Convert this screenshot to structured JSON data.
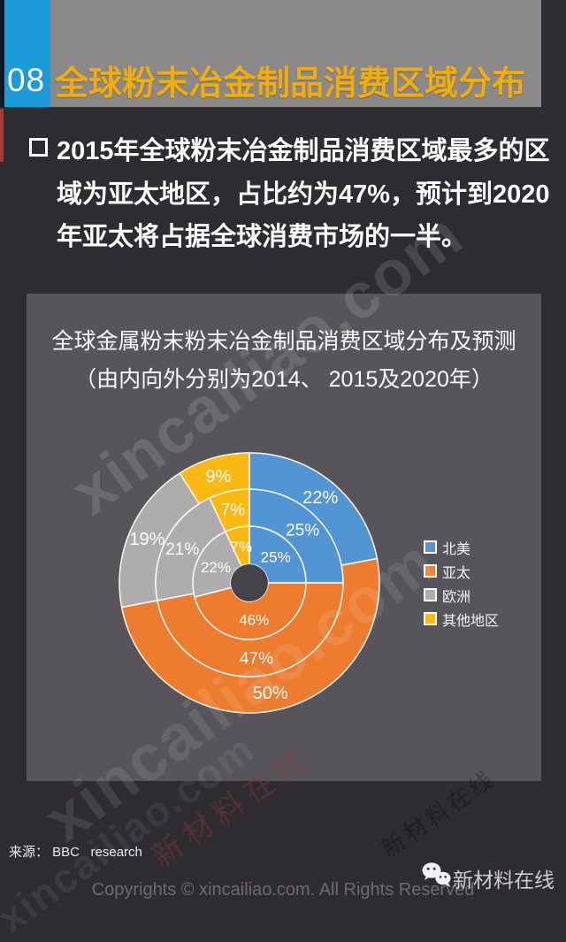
{
  "header": {
    "page_number": "08",
    "title": "全球粉末冶金制品消费区域分布"
  },
  "bullet": {
    "lines": [
      "2015年全球粉末冶金制品消费区域最多的区",
      "域为亚太地区，占比约为47%，预计到2020",
      "年亚太将占据全球消费市场的一半。"
    ]
  },
  "chart_data": {
    "type": "pie",
    "variant": "nested-donut-3-rings",
    "title": "全球金属粉末粉末冶金制品消费区域分布及预测",
    "subtitle": "（由内向外分别为2014、 2015及2020年）",
    "categories": [
      "北美",
      "亚太",
      "欧洲",
      "其他地区"
    ],
    "colors": [
      "#5295d5",
      "#ee7c2f",
      "#aeacad",
      "#fcb912"
    ],
    "unit": "%",
    "series": [
      {
        "name": "2014",
        "ring": "inner",
        "values": [
          25,
          46,
          22,
          7
        ]
      },
      {
        "name": "2015",
        "ring": "middle",
        "values": [
          25,
          47,
          21,
          7
        ]
      },
      {
        "name": "2020",
        "ring": "outer",
        "values": [
          22,
          50,
          19,
          9
        ]
      }
    ],
    "legend_position": "right",
    "layout": {
      "start_angle_deg": 0,
      "direction": "clockwise",
      "rings": [
        {
          "r0": 21,
          "r1": 64,
          "label_r": 42,
          "label_size": 17
        },
        {
          "r0": 64,
          "r1": 106,
          "label_r": 85,
          "label_size": 19
        },
        {
          "r0": 106,
          "r1": 147,
          "label_r": 126,
          "label_size": 20
        }
      ],
      "hole_color": "#45424a",
      "stroke_color": "#fafafa",
      "label_color": "#ffffff"
    }
  },
  "source": {
    "text": "来源： BBC   research"
  },
  "footer": {
    "copyright": "Copyrights © xincailiao.com. All Rights Reserved",
    "brand": "新材料在线"
  },
  "watermark": {
    "text": "xincailiao.com",
    "stamp": "新材料在线"
  },
  "colors": {
    "page_bg": "#2f2c31",
    "band_bg": "#8b8889",
    "title_text": "#f0ad0b",
    "num_block": "#1b9bd8",
    "left_strip": "#101722",
    "red_sliver": "#a93a3c",
    "panel_bg": "#57545a",
    "body_text": "#fdfdfd",
    "copyright_text": "#6e6b70",
    "brand_text": "#cfccd0"
  }
}
